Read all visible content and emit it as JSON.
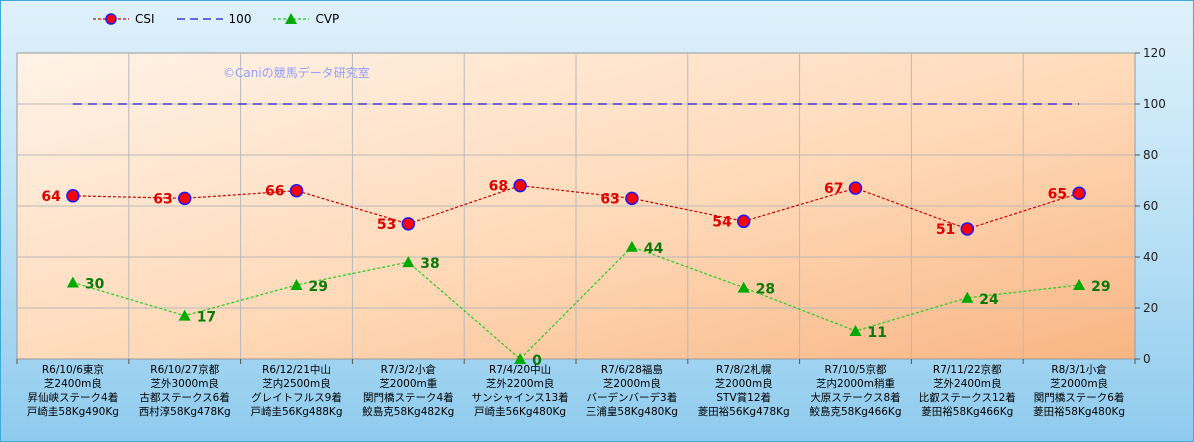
{
  "watermark": "©Caniの競馬データ研究室",
  "colors": {
    "csi": "#cc0000",
    "csi_marker_fill": "#ff0000",
    "csi_marker_edge": "#1a1aff",
    "baseline": "#1a1acc",
    "cvp": "#22cc22",
    "cvp_marker": "#00aa00"
  },
  "chart_data": {
    "type": "line",
    "ylim": [
      0,
      120
    ],
    "yticks": [
      0,
      20,
      40,
      60,
      80,
      100,
      120
    ],
    "grid": true,
    "legend_position": "top-left",
    "categories": [
      [
        "R6/10/6東京",
        "芝2400m良",
        "昇仙峡ステーク4着",
        "戸崎圭58Kg490Kg"
      ],
      [
        "R6/10/27京都",
        "芝外3000m良",
        "古都ステークス6着",
        "西村淳58Kg478Kg"
      ],
      [
        "R6/12/21中山",
        "芝内2500m良",
        "グレイトフルス9着",
        "戸崎圭56Kg488Kg"
      ],
      [
        "R7/3/2小倉",
        "芝2000m重",
        "関門橋ステーク4着",
        "鮫島克58Kg482Kg"
      ],
      [
        "R7/4/20中山",
        "芝外2200m良",
        "サンシャインス13着",
        "戸崎圭56Kg480Kg"
      ],
      [
        "R7/6/28福島",
        "芝2000m良",
        "バーデンバーデ3着",
        "三浦皇58Kg480Kg"
      ],
      [
        "R7/8/2札幌",
        "芝2000m良",
        "STV賞12着",
        "菱田裕56Kg478Kg"
      ],
      [
        "R7/10/5京都",
        "芝内2000m稍重",
        "大原ステークス8着",
        "鮫島克58Kg466Kg"
      ],
      [
        "R7/11/22京都",
        "芝外2400m良",
        "比叡ステークス12着",
        "菱田裕58Kg466Kg"
      ],
      [
        "R8/3/1小倉",
        "芝2000m良",
        "関門橋ステーク6着",
        "菱田裕58Kg480Kg"
      ]
    ],
    "series": [
      {
        "name": "CSI",
        "values": [
          64,
          63,
          66,
          53,
          68,
          63,
          54,
          67,
          51,
          65
        ],
        "labels": [
          "64",
          "63",
          "66",
          "53",
          "68",
          "63",
          "54",
          "67",
          "51",
          "65"
        ]
      },
      {
        "name": "100",
        "values": [
          100,
          100,
          100,
          100,
          100,
          100,
          100,
          100,
          100,
          100
        ]
      },
      {
        "name": "CVP",
        "values": [
          30,
          17,
          29,
          38,
          0,
          44,
          28,
          11,
          24,
          29
        ],
        "labels": [
          "30",
          "17",
          "29",
          "38",
          "0",
          "44",
          "28",
          "11",
          "24",
          "29"
        ]
      }
    ]
  }
}
